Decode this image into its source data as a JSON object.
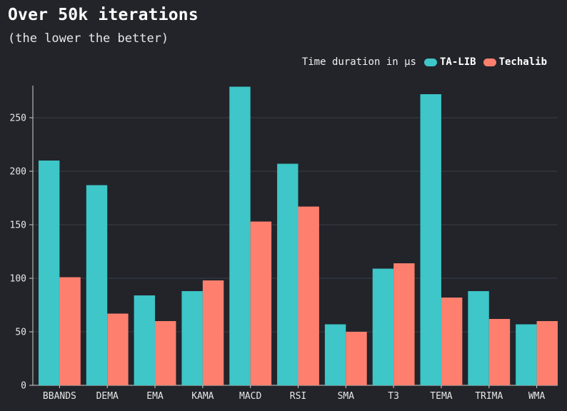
{
  "chart_data": {
    "type": "bar",
    "title": "Over 50k iterations",
    "subtitle": "(the lower the better)",
    "legend_label": "Time duration in μs",
    "legend_position": "top-right",
    "categories": [
      "BBANDS",
      "DEMA",
      "EMA",
      "KAMA",
      "MACD",
      "RSI",
      "SMA",
      "T3",
      "TEMA",
      "TRIMA",
      "WMA"
    ],
    "series": [
      {
        "name": "TA-LIB",
        "color": "#3ec6c8",
        "values": [
          210,
          187,
          84,
          88,
          279,
          207,
          57,
          109,
          272,
          88,
          57
        ]
      },
      {
        "name": "Techalib",
        "color": "#ff7f6e",
        "values": [
          101,
          67,
          60,
          98,
          153,
          167,
          50,
          114,
          82,
          62,
          60
        ]
      }
    ],
    "yticks": [
      0,
      50,
      100,
      150,
      200,
      250
    ],
    "ylim": [
      0,
      280
    ],
    "grid": true,
    "xlabel": "",
    "ylabel": ""
  }
}
